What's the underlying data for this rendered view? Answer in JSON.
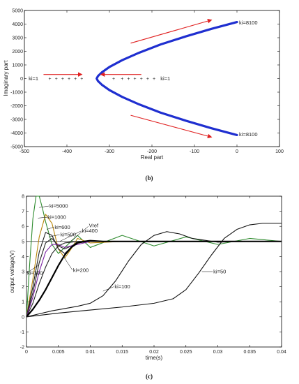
{
  "chart_data": [
    {
      "type": "scatter",
      "subtitle": "(b)",
      "xlabel": "Real part",
      "ylabel": "Imaginary part",
      "xlim": [
        -500,
        100
      ],
      "ylim": [
        -5000,
        5000
      ],
      "xticks": [
        -500,
        -400,
        -300,
        -200,
        -100,
        0,
        100
      ],
      "yticks": [
        -5000,
        -4000,
        -3000,
        -2000,
        -1000,
        0,
        1000,
        2000,
        3000,
        4000,
        5000
      ],
      "grid": false,
      "series": [
        {
          "color": "#1f2fd0",
          "x": [
            0,
            -60,
            -120,
            -180,
            -230,
            -270,
            -300,
            -318,
            -327,
            -330,
            -327,
            -318,
            -300,
            -270,
            -230,
            -180,
            -120,
            -60,
            0
          ],
          "y": [
            4150,
            3650,
            3100,
            2500,
            1900,
            1350,
            850,
            450,
            180,
            0,
            -180,
            -450,
            -850,
            -1350,
            -1900,
            -2500,
            -3100,
            -3650,
            -4150
          ]
        },
        {
          "color": "#555555",
          "x": [
            -440,
            -425,
            -410,
            -395,
            -380,
            -365
          ],
          "y": [
            0,
            0,
            0,
            0,
            0,
            0
          ]
        },
        {
          "color": "#555555",
          "x": [
            -290,
            -270,
            -255,
            -240,
            -225,
            -210,
            -195
          ],
          "y": [
            0,
            0,
            0,
            0,
            0,
            0,
            0
          ]
        }
      ],
      "annotations": [
        {
          "text": "ki=1",
          "x": -490,
          "y": 0
        },
        {
          "text": "ki=1",
          "x": -180,
          "y": 0
        },
        {
          "text": "ki=8100",
          "x": 5,
          "y": 4100
        },
        {
          "text": "ki=8100",
          "x": 5,
          "y": -4100
        }
      ],
      "arrow_color": "#e02020"
    },
    {
      "type": "line",
      "subtitle": "(c)",
      "xlabel": "time(s)",
      "ylabel": "output voltage(V)",
      "xlim": [
        0,
        0.04
      ],
      "ylim": [
        -2,
        8
      ],
      "xticks": [
        "0",
        "0.005",
        "0.01",
        "0.015",
        "0.02",
        "0.025",
        "0.03",
        "0.035",
        "0.04"
      ],
      "yticks": [
        "-2",
        "-1",
        "0",
        "1",
        "2",
        "3",
        "4",
        "5",
        "6",
        "7",
        "8"
      ],
      "grid": false,
      "reference": {
        "label": "Vref",
        "y": 5
      },
      "series": [
        {
          "name": "ki=5000",
          "color": "#2e8b2e",
          "x": [
            0,
            0.0005,
            0.001,
            0.0015,
            0.002,
            0.0025,
            0.003,
            0.004,
            0.005,
            0.006,
            0.008,
            0.01,
            0.015,
            0.02,
            0.025,
            0.03,
            0.035,
            0.04
          ],
          "y": [
            0,
            3.5,
            6.5,
            8,
            8,
            7.2,
            6.3,
            4.8,
            4.2,
            4.6,
            5.4,
            4.6,
            5.4,
            4.7,
            5.3,
            4.8,
            5.2,
            5.0
          ]
        },
        {
          "name": "ki=1000",
          "color": "#b8860b",
          "x": [
            0,
            0.001,
            0.002,
            0.003,
            0.004,
            0.005,
            0.006,
            0.007,
            0.008,
            0.01,
            0.015,
            0.02,
            0.03,
            0.04
          ],
          "y": [
            0,
            2.5,
            5.3,
            6.8,
            6.2,
            4.5,
            3.9,
            4.5,
            5.2,
            4.9,
            5.0,
            5.0,
            5.0,
            5.0
          ]
        },
        {
          "name": "ki=600",
          "color": "#222222",
          "x": [
            0,
            0.001,
            0.002,
            0.003,
            0.004,
            0.005,
            0.006,
            0.007,
            0.008,
            0.01,
            0.015,
            0.04
          ],
          "y": [
            0,
            2.0,
            4.3,
            5.6,
            5.4,
            4.5,
            4.2,
            4.6,
            5.0,
            5.0,
            5.0,
            5.0
          ]
        },
        {
          "name": "ki=500",
          "color": "#222222",
          "x": [
            0,
            0.001,
            0.002,
            0.003,
            0.004,
            0.005,
            0.006,
            0.008,
            0.01,
            0.015,
            0.04
          ],
          "y": [
            0,
            1.6,
            3.6,
            4.9,
            5.2,
            4.7,
            4.5,
            4.9,
            5.0,
            5.0,
            5.0
          ]
        },
        {
          "name": "ki=400",
          "color": "#7a1fa0",
          "x": [
            0,
            0.001,
            0.002,
            0.003,
            0.004,
            0.005,
            0.006,
            0.008,
            0.01,
            0.015,
            0.04
          ],
          "y": [
            0,
            1.3,
            3.0,
            4.3,
            4.8,
            4.8,
            4.6,
            4.8,
            5.0,
            5.0,
            5.0
          ]
        },
        {
          "name": "ki=300",
          "color": "#222222",
          "x": [
            0,
            0.001,
            0.002,
            0.003,
            0.004,
            0.005,
            0.006,
            0.008,
            0.01,
            0.012,
            0.015,
            0.04
          ],
          "y": [
            0,
            0.9,
            2.2,
            3.3,
            4.2,
            4.7,
            4.9,
            5.0,
            5.0,
            5.0,
            5.0,
            5.0
          ]
        },
        {
          "name": "ki=200",
          "color": "#000000",
          "x": [
            0,
            0.001,
            0.002,
            0.003,
            0.004,
            0.005,
            0.006,
            0.007,
            0.008,
            0.009,
            0.01,
            0.012,
            0.015,
            0.04
          ],
          "y": [
            0,
            0.5,
            1.1,
            1.8,
            2.6,
            3.4,
            4.1,
            4.6,
            4.9,
            5.0,
            5.05,
            5.0,
            5.0,
            5.0
          ]
        },
        {
          "name": "ki=100",
          "color": "#111111",
          "x": [
            0,
            0.002,
            0.004,
            0.006,
            0.008,
            0.01,
            0.012,
            0.014,
            0.016,
            0.018,
            0.02,
            0.022,
            0.024,
            0.026,
            0.03,
            0.035,
            0.04
          ],
          "y": [
            0,
            0.2,
            0.4,
            0.55,
            0.7,
            0.9,
            1.4,
            2.4,
            3.7,
            4.8,
            5.4,
            5.65,
            5.5,
            5.2,
            4.95,
            5.0,
            5.0
          ]
        },
        {
          "name": "ki=50",
          "color": "#111111",
          "x": [
            0,
            0.005,
            0.01,
            0.015,
            0.02,
            0.023,
            0.025,
            0.027,
            0.029,
            0.031,
            0.033,
            0.035,
            0.037,
            0.04
          ],
          "y": [
            0,
            0.25,
            0.45,
            0.65,
            0.9,
            1.2,
            1.8,
            2.9,
            4.1,
            5.2,
            5.8,
            6.1,
            6.2,
            6.2
          ]
        }
      ]
    }
  ]
}
